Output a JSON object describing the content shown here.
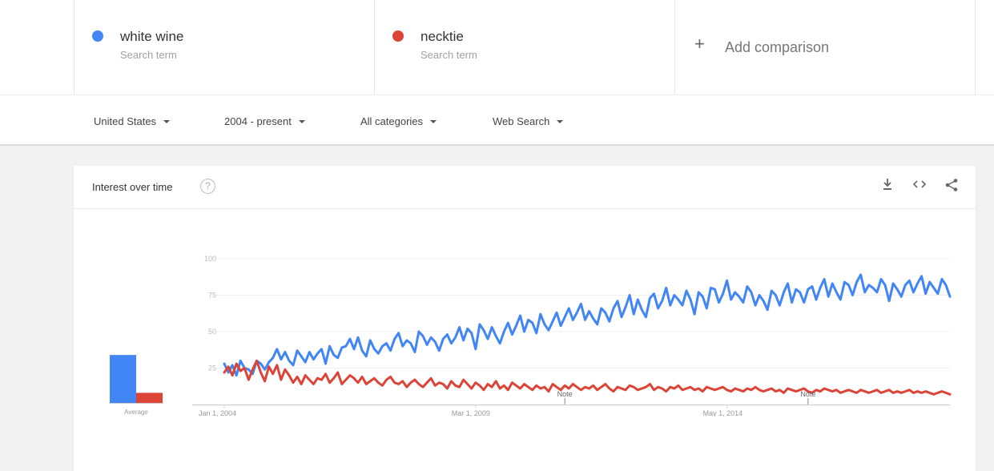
{
  "terms": [
    {
      "name": "white wine",
      "subtitle": "Search term",
      "color": "#4285f4"
    },
    {
      "name": "necktie",
      "subtitle": "Search term",
      "color": "#db4437"
    }
  ],
  "add_comparison": {
    "icon": "plus-icon",
    "label": "Add comparison"
  },
  "filters": [
    {
      "label": "United States"
    },
    {
      "label": "2004 - present"
    },
    {
      "label": "All categories"
    },
    {
      "label": "Web Search"
    }
  ],
  "card": {
    "title": "Interest over time",
    "help_icon": "?",
    "icons": [
      "download-icon",
      "embed-icon",
      "share-icon"
    ]
  },
  "chart_data": {
    "type": "line",
    "y_ticks": [
      25,
      50,
      75,
      100
    ],
    "ylim": [
      0,
      100
    ],
    "grid": true,
    "x_tick_labels": [
      "Jan 1, 2004",
      "Mar 1, 2009",
      "May 1, 2014"
    ],
    "notes": [
      {
        "label": "Note",
        "date": "2011-01"
      },
      {
        "label": "Note",
        "date": "2016-01"
      }
    ],
    "average": {
      "label": "Average",
      "series": [
        {
          "name": "white wine",
          "value": 57
        },
        {
          "name": "necktie",
          "value": 12
        }
      ]
    },
    "series": [
      {
        "name": "white wine",
        "color": "#4285f4",
        "start": "2004-01",
        "values": [
          28,
          22,
          27,
          20,
          30,
          25,
          24,
          21,
          30,
          28,
          24,
          29,
          32,
          38,
          31,
          36,
          30,
          27,
          37,
          33,
          29,
          36,
          31,
          35,
          38,
          28,
          40,
          34,
          32,
          39,
          40,
          45,
          38,
          46,
          37,
          33,
          44,
          38,
          35,
          40,
          42,
          37,
          45,
          49,
          40,
          44,
          42,
          36,
          50,
          47,
          41,
          46,
          43,
          37,
          45,
          48,
          42,
          46,
          53,
          44,
          52,
          49,
          38,
          55,
          51,
          45,
          53,
          47,
          42,
          50,
          56,
          48,
          54,
          61,
          50,
          58,
          56,
          49,
          62,
          55,
          51,
          57,
          63,
          54,
          60,
          66,
          58,
          63,
          69,
          58,
          64,
          59,
          55,
          66,
          63,
          57,
          66,
          71,
          60,
          67,
          75,
          62,
          72,
          65,
          60,
          73,
          76,
          66,
          71,
          80,
          68,
          75,
          72,
          68,
          78,
          72,
          62,
          77,
          74,
          66,
          80,
          79,
          70,
          76,
          85,
          72,
          77,
          74,
          70,
          81,
          77,
          68,
          75,
          71,
          65,
          78,
          75,
          68,
          77,
          83,
          70,
          79,
          77,
          70,
          79,
          81,
          72,
          80,
          86,
          74,
          83,
          77,
          72,
          84,
          82,
          75,
          84,
          89,
          77,
          82,
          80,
          77,
          86,
          82,
          71,
          83,
          79,
          74,
          82,
          85,
          77,
          83,
          88,
          76,
          84,
          80,
          76,
          86,
          82,
          74
        ]
      },
      {
        "name": "necktie",
        "color": "#db4437",
        "start": "2004-01",
        "values": [
          22,
          26,
          20,
          28,
          23,
          25,
          17,
          24,
          30,
          22,
          16,
          26,
          21,
          27,
          17,
          24,
          20,
          15,
          19,
          14,
          20,
          17,
          14,
          18,
          17,
          21,
          15,
          18,
          22,
          14,
          17,
          20,
          18,
          15,
          19,
          14,
          16,
          18,
          15,
          13,
          17,
          19,
          15,
          14,
          16,
          12,
          15,
          17,
          14,
          12,
          15,
          18,
          13,
          15,
          14,
          11,
          16,
          13,
          12,
          17,
          14,
          11,
          15,
          13,
          10,
          14,
          12,
          16,
          11,
          13,
          10,
          15,
          13,
          11,
          14,
          12,
          10,
          13,
          11,
          12,
          9,
          14,
          12,
          10,
          13,
          11,
          14,
          12,
          10,
          12,
          11,
          13,
          10,
          12,
          14,
          11,
          9,
          12,
          11,
          10,
          13,
          12,
          10,
          11,
          12,
          14,
          10,
          12,
          11,
          9,
          12,
          11,
          13,
          10,
          11,
          12,
          10,
          11,
          9,
          12,
          11,
          10,
          11,
          12,
          10,
          9,
          11,
          10,
          9,
          11,
          10,
          12,
          10,
          9,
          10,
          11,
          9,
          10,
          8,
          11,
          10,
          9,
          10,
          11,
          9,
          8,
          10,
          9,
          11,
          10,
          9,
          10,
          8,
          9,
          10,
          9,
          8,
          10,
          9,
          8,
          9,
          10,
          8,
          9,
          10,
          8,
          9,
          8,
          9,
          10,
          8,
          9,
          8,
          9,
          8,
          7,
          8,
          9,
          8,
          7
        ]
      }
    ]
  }
}
